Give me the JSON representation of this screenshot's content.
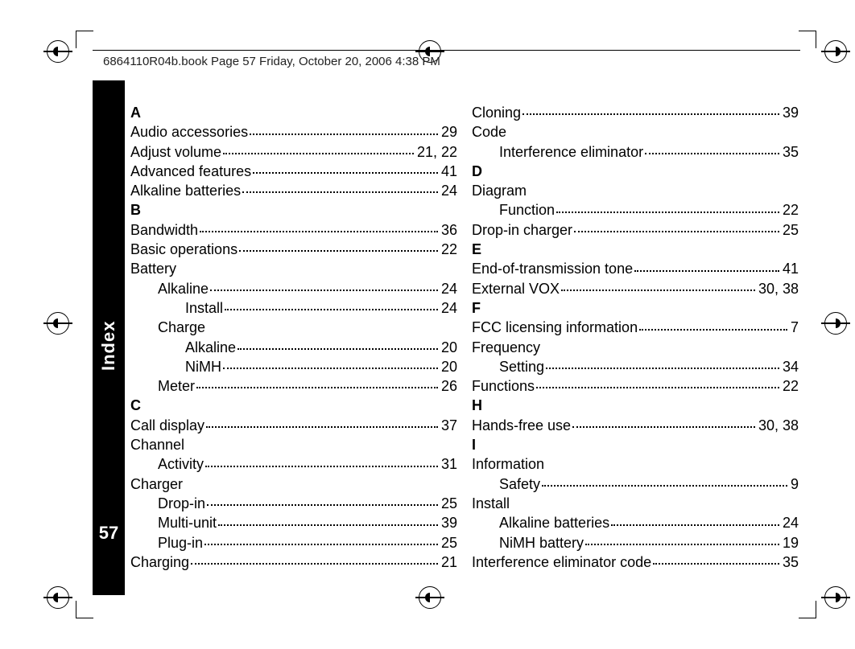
{
  "header": "6864110R04b.book  Page 57  Friday, October 20, 2006  4:38 PM",
  "sidebar": {
    "label": "Index",
    "page": "57"
  },
  "columns": [
    [
      {
        "type": "letter",
        "text": "A"
      },
      {
        "type": "entry",
        "text": "Audio accessories",
        "page": "29"
      },
      {
        "type": "entry",
        "text": "Adjust volume",
        "page": "21, 22"
      },
      {
        "type": "entry",
        "text": "Advanced features",
        "page": "41"
      },
      {
        "type": "entry",
        "text": "Alkaline batteries",
        "page": "24"
      },
      {
        "type": "letter",
        "text": "B"
      },
      {
        "type": "entry",
        "text": "Bandwidth",
        "page": "36"
      },
      {
        "type": "entry",
        "text": "Basic operations",
        "page": "22"
      },
      {
        "type": "plain",
        "text": "Battery"
      },
      {
        "type": "entry",
        "indent": 1,
        "text": "Alkaline",
        "page": "24"
      },
      {
        "type": "entry",
        "indent": 2,
        "text": "Install",
        "page": "24"
      },
      {
        "type": "plain",
        "indent": 1,
        "text": "Charge"
      },
      {
        "type": "entry",
        "indent": 2,
        "text": "Alkaline",
        "page": "20"
      },
      {
        "type": "entry",
        "indent": 2,
        "text": "NiMH",
        "page": "20"
      },
      {
        "type": "entry",
        "indent": 1,
        "text": "Meter",
        "page": "26"
      },
      {
        "type": "letter",
        "text": "C"
      },
      {
        "type": "entry",
        "text": "Call display",
        "page": "37"
      },
      {
        "type": "plain",
        "text": "Channel"
      },
      {
        "type": "entry",
        "indent": 1,
        "text": "Activity",
        "page": "31"
      },
      {
        "type": "plain",
        "text": "Charger"
      },
      {
        "type": "entry",
        "indent": 1,
        "text": "Drop-in",
        "page": "25"
      },
      {
        "type": "entry",
        "indent": 1,
        "text": "Multi-unit",
        "page": "39"
      },
      {
        "type": "entry",
        "indent": 1,
        "text": "Plug-in",
        "page": "25"
      },
      {
        "type": "entry",
        "text": "Charging",
        "page": "21"
      }
    ],
    [
      {
        "type": "entry",
        "text": "Cloning",
        "page": "39"
      },
      {
        "type": "plain",
        "text": "Code"
      },
      {
        "type": "entry",
        "indent": 1,
        "text": "Interference eliminator",
        "page": "35"
      },
      {
        "type": "letter",
        "text": "D"
      },
      {
        "type": "plain",
        "text": "Diagram"
      },
      {
        "type": "entry",
        "indent": 1,
        "text": "Function",
        "page": "22"
      },
      {
        "type": "entry",
        "text": "Drop-in charger",
        "page": "25"
      },
      {
        "type": "letter",
        "text": "E"
      },
      {
        "type": "entry",
        "text": "End-of-transmission tone",
        "page": "41"
      },
      {
        "type": "entry",
        "text": "External VOX",
        "page": "30, 38"
      },
      {
        "type": "letter",
        "text": "F"
      },
      {
        "type": "entry",
        "text": "FCC licensing information",
        "page": "7"
      },
      {
        "type": "plain",
        "text": "Frequency"
      },
      {
        "type": "entry",
        "indent": 1,
        "text": "Setting",
        "page": "34"
      },
      {
        "type": "entry",
        "text": "Functions",
        "page": "22"
      },
      {
        "type": "letter",
        "text": "H"
      },
      {
        "type": "entry",
        "text": "Hands-free use",
        "page": "30, 38"
      },
      {
        "type": "letter",
        "text": "I"
      },
      {
        "type": "plain",
        "text": "Information"
      },
      {
        "type": "entry",
        "indent": 1,
        "text": "Safety",
        "page": "9"
      },
      {
        "type": "plain",
        "text": "Install"
      },
      {
        "type": "entry",
        "indent": 1,
        "text": "Alkaline batteries",
        "page": "24"
      },
      {
        "type": "entry",
        "indent": 1,
        "text": "NiMH battery",
        "page": "19"
      },
      {
        "type": "entry",
        "text": "Interference eliminator code",
        "page": "35"
      }
    ]
  ]
}
